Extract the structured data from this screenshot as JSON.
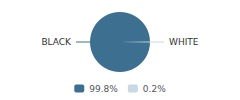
{
  "chart_data": {
    "type": "pie",
    "categories": [
      "99.8%",
      "0.2%"
    ],
    "values": [
      99.8,
      0.2
    ],
    "colors": [
      "#3d7090",
      "#c8d8e4"
    ],
    "annotations": [
      "BLACK",
      "WHITE"
    ],
    "legend": "bottom"
  }
}
